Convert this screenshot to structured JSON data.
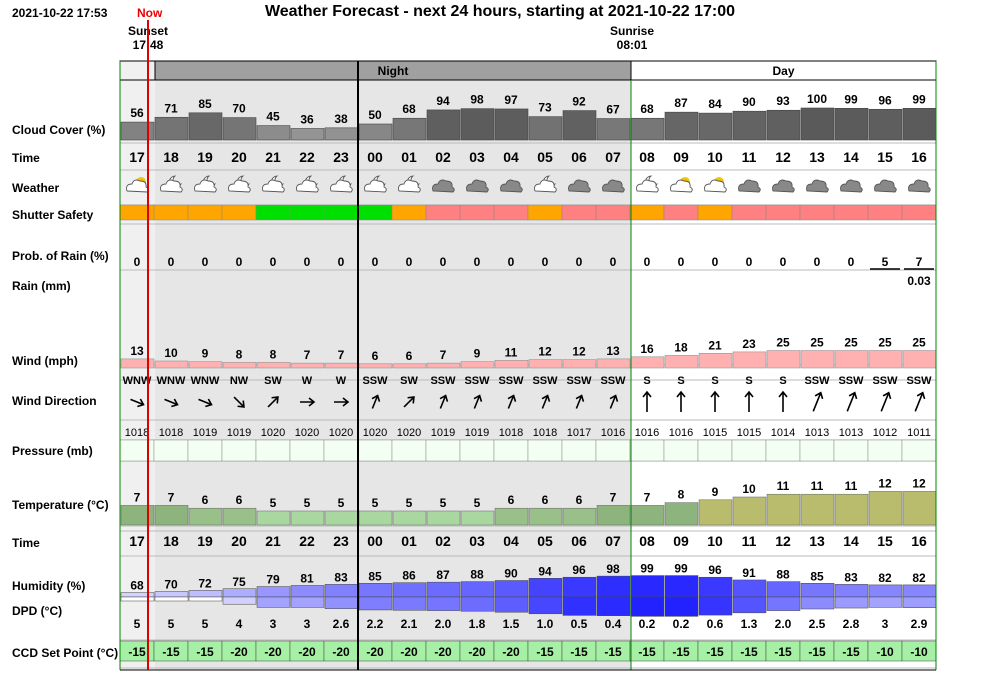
{
  "header": {
    "timestamp": "2021-10-22 17:53",
    "now_label": "Now",
    "title": "Weather Forecast - next 24 hours, starting at 2021-10-22 17:00",
    "sunset_label": "Sunset",
    "sunset_time": "17:48",
    "sunrise_label": "Sunrise",
    "sunrise_time": "08:01",
    "night_label": "Night",
    "day_label": "Day"
  },
  "row_labels": {
    "cloud": "Cloud Cover (%)",
    "time": "Time",
    "weather": "Weather",
    "shutter": "Shutter Safety",
    "prob_rain": "Prob. of Rain (%)",
    "rain": "Rain (mm)",
    "wind": "Wind (mph)",
    "wind_dir": "Wind Direction",
    "pressure": "Pressure (mb)",
    "temperature": "Temperature (°C)",
    "time2": "Time",
    "humidity": "Humidity (%)",
    "dpd": "DPD (°C)",
    "ccd": "CCD Set Point (°C)"
  },
  "chart_data": {
    "type": "table",
    "hours": [
      "17",
      "18",
      "19",
      "20",
      "21",
      "22",
      "23",
      "00",
      "01",
      "02",
      "03",
      "04",
      "05",
      "06",
      "07",
      "08",
      "09",
      "10",
      "11",
      "12",
      "13",
      "14",
      "15",
      "16"
    ],
    "cloud_cover": [
      56,
      71,
      85,
      70,
      45,
      36,
      38,
      50,
      68,
      94,
      98,
      97,
      73,
      92,
      67,
      68,
      87,
      84,
      90,
      93,
      100,
      99,
      96,
      99
    ],
    "weather_icons": [
      "partly-cloudy-day-icon",
      "partly-cloudy-night-icon",
      "partly-cloudy-night-icon",
      "partly-cloudy-night-icon",
      "partly-cloudy-night-icon",
      "partly-cloudy-night-icon",
      "partly-cloudy-night-icon",
      "partly-cloudy-night-icon",
      "partly-cloudy-night-icon",
      "cloudy-icon",
      "cloudy-icon",
      "cloudy-icon",
      "partly-cloudy-night-icon",
      "cloudy-icon",
      "cloudy-icon",
      "partly-cloudy-night-icon",
      "partly-cloudy-day-icon",
      "partly-cloudy-day-icon",
      "cloudy-icon",
      "cloudy-icon",
      "cloudy-icon",
      "cloudy-icon",
      "cloudy-icon",
      "cloudy-icon"
    ],
    "shutter_safety": [
      "orange",
      "orange",
      "orange",
      "orange",
      "green",
      "green",
      "green",
      "green",
      "orange",
      "red",
      "red",
      "red",
      "orange",
      "red",
      "red",
      "orange",
      "red",
      "orange",
      "red",
      "red",
      "red",
      "red",
      "red",
      "red"
    ],
    "shutter_colors": {
      "orange": "#ffa500",
      "green": "#00e000",
      "red": "#ff8080"
    },
    "prob_rain": [
      0,
      0,
      0,
      0,
      0,
      0,
      0,
      0,
      0,
      0,
      0,
      0,
      0,
      0,
      0,
      0,
      0,
      0,
      0,
      0,
      0,
      0,
      5,
      7
    ],
    "rain_mm": [
      null,
      null,
      null,
      null,
      null,
      null,
      null,
      null,
      null,
      null,
      null,
      null,
      null,
      null,
      null,
      null,
      null,
      null,
      null,
      null,
      null,
      null,
      null,
      "0.03"
    ],
    "wind_mph": [
      13,
      10,
      9,
      8,
      8,
      7,
      7,
      6,
      6,
      7,
      9,
      11,
      12,
      12,
      13,
      16,
      18,
      21,
      23,
      25,
      25,
      25,
      25,
      25
    ],
    "wind_direction": [
      "WNW",
      "WNW",
      "WNW",
      "NW",
      "SW",
      "W",
      "W",
      "SSW",
      "SW",
      "SSW",
      "SSW",
      "SSW",
      "SSW",
      "SSW",
      "SSW",
      "S",
      "S",
      "S",
      "S",
      "S",
      "SSW",
      "SSW",
      "SSW",
      "SSW"
    ],
    "wind_arrow_deg": [
      112,
      112,
      112,
      135,
      45,
      90,
      90,
      22,
      45,
      22,
      22,
      22,
      22,
      22,
      22,
      0,
      0,
      0,
      0,
      0,
      22,
      22,
      22,
      22
    ],
    "pressure_mb": [
      1018,
      1018,
      1019,
      1019,
      1020,
      1020,
      1020,
      1020,
      1020,
      1019,
      1019,
      1018,
      1018,
      1017,
      1016,
      1016,
      1016,
      1015,
      1015,
      1014,
      1013,
      1013,
      1012,
      1011
    ],
    "temperature_c": [
      7,
      7,
      6,
      6,
      5,
      5,
      5,
      5,
      5,
      5,
      5,
      6,
      6,
      6,
      7,
      7,
      8,
      9,
      10,
      11,
      11,
      11,
      12,
      12
    ],
    "humidity_pct": [
      68,
      70,
      72,
      75,
      79,
      81,
      83,
      85,
      86,
      87,
      88,
      90,
      94,
      96,
      98,
      99,
      99,
      96,
      91,
      88,
      85,
      83,
      82,
      82
    ],
    "dpd_c": [
      "5",
      "5",
      "5",
      "4",
      "3",
      "3",
      "2.6",
      "2.2",
      "2.1",
      "2.0",
      "1.8",
      "1.5",
      "1.0",
      "0.5",
      "0.4",
      "0.2",
      "0.2",
      "0.6",
      "1.3",
      "2.0",
      "2.5",
      "2.8",
      "3",
      "2.9"
    ],
    "ccd_set_point_c": [
      -15,
      -15,
      -15,
      -20,
      -20,
      -20,
      -20,
      -20,
      -20,
      -20,
      -20,
      -20,
      -15,
      -15,
      -15,
      -15,
      -15,
      -15,
      -15,
      -15,
      -15,
      -15,
      -10,
      -10
    ],
    "colors": {
      "night_bg": "#e6e6e6",
      "ccd_bg": "#a6f0a6",
      "sun_line": "#e00000",
      "grid": "#008000"
    }
  }
}
